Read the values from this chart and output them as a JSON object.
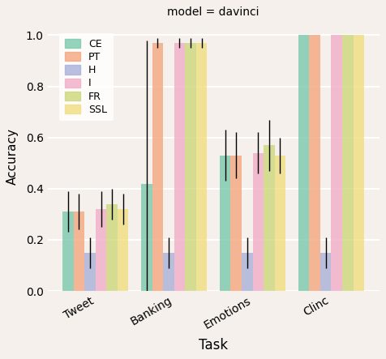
{
  "title": "model = davinci",
  "xlabel": "Task",
  "ylabel": "Accuracy",
  "tasks": [
    "Tweet",
    "Banking",
    "Emotions",
    "Clinc"
  ],
  "loss_types": [
    "CE",
    "PT",
    "H",
    "I",
    "FR",
    "SSL"
  ],
  "colors": [
    "#7ecab0",
    "#f4a882",
    "#aab2d8",
    "#f2aec8",
    "#ccd87e",
    "#f0de82"
  ],
  "bar_values": {
    "Tweet": [
      0.31,
      0.31,
      0.15,
      0.32,
      0.34,
      0.32
    ],
    "Banking": [
      0.42,
      0.97,
      0.15,
      0.97,
      0.97,
      0.97
    ],
    "Emotions": [
      0.53,
      0.53,
      0.15,
      0.54,
      0.57,
      0.53
    ],
    "Clinc": [
      1.0,
      1.0,
      0.15,
      1.0,
      1.0,
      1.0
    ]
  },
  "err_values": {
    "Tweet": [
      0.08,
      0.07,
      0.06,
      0.07,
      0.06,
      0.06
    ],
    "Banking": [
      0.56,
      0.02,
      0.06,
      0.02,
      0.02,
      0.02
    ],
    "Emotions": [
      0.1,
      0.09,
      0.06,
      0.08,
      0.1,
      0.07
    ],
    "Clinc": [
      0.0,
      0.0,
      0.06,
      0.0,
      0.0,
      0.0
    ]
  },
  "ylim": [
    0.0,
    1.05
  ],
  "yticks": [
    0.0,
    0.2,
    0.4,
    0.6,
    0.8,
    1.0
  ],
  "background_color": "#f5f0eb",
  "grid_color": "#ffffff"
}
